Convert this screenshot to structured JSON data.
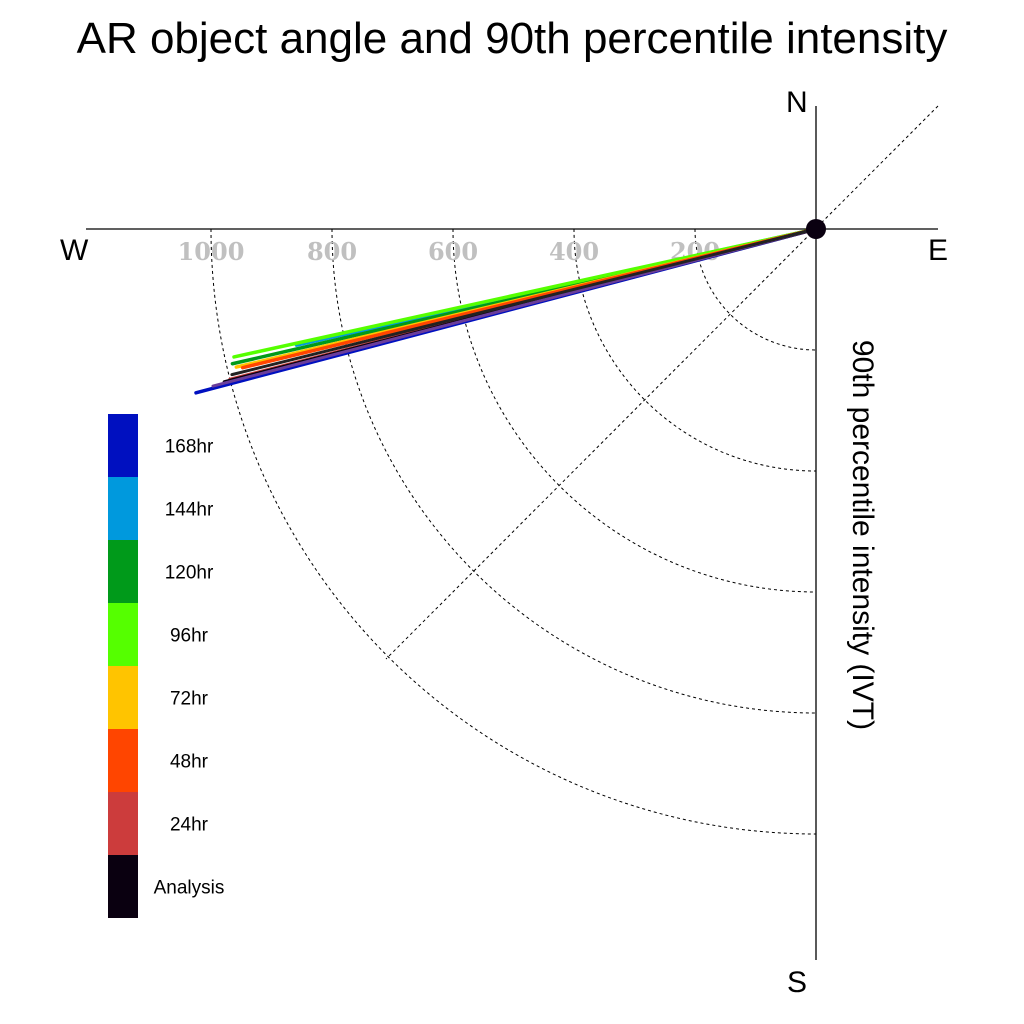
{
  "chart_data": {
    "type": "polar",
    "title": "AR object angle and 90th percentile intensity",
    "ylabel": "90th percentile intensity (IVT)",
    "compass": {
      "north": "N",
      "south": "S",
      "east": "E",
      "west": "W"
    },
    "radial_ticks": [
      200,
      400,
      600,
      800,
      1000
    ],
    "radial_tick_labels": [
      "200",
      "400",
      "600",
      "800",
      "1000"
    ],
    "radial_range": [
      0,
      1200
    ],
    "angle_range_deg": [
      180,
      270
    ],
    "grid": true,
    "legend_placement": "left",
    "series": [
      {
        "name": "168hr",
        "color": "#0010c0",
        "angle_deg": 194.8,
        "intensity": 1060
      },
      {
        "name": "144hr",
        "color": "#0099dd",
        "angle_deg": 192.6,
        "intensity": 880
      },
      {
        "name": "120hr",
        "color": "#009a1a",
        "angle_deg": 193.0,
        "intensity": 990
      },
      {
        "name": "96hr",
        "color": "#55ff00",
        "angle_deg": 192.4,
        "intensity": 985
      },
      {
        "name": "72hr",
        "color": "#ffc400",
        "angle_deg": 193.4,
        "intensity": 985
      },
      {
        "name": "48hr",
        "color": "#ff4500",
        "angle_deg": 193.6,
        "intensity": 975
      },
      {
        "name": "24hr",
        "color": "#cc3c3c",
        "angle_deg": 194.4,
        "intensity": 1000
      },
      {
        "name": "Analysis",
        "color": "#0a0010",
        "angle_deg": 194.5,
        "intensity": 1010
      }
    ],
    "overlay_lines": [
      {
        "color": "#6a3d9a",
        "angle_deg": 194.6,
        "intensity": 1030
      },
      {
        "color": "#222222",
        "angle_deg": 194.0,
        "intensity": 995
      }
    ]
  }
}
